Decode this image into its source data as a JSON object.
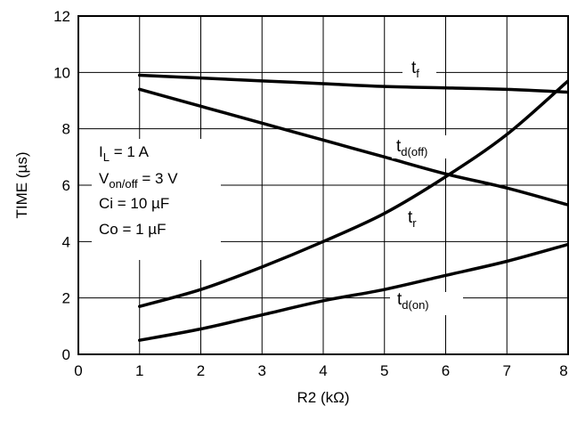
{
  "chart_data": {
    "type": "line",
    "xlabel": "R2 (kΩ)",
    "ylabel": "TIME (µs)",
    "xlim": [
      0,
      8
    ],
    "ylim": [
      0,
      12
    ],
    "xticks": [
      "0",
      "1",
      "2",
      "3",
      "4",
      "5",
      "6",
      "7",
      "8"
    ],
    "yticks": [
      "0",
      "2",
      "4",
      "6",
      "8",
      "10",
      "12"
    ],
    "grid": true,
    "series": [
      {
        "name": "tf",
        "label_main": "t",
        "label_sub": "f",
        "x": [
          1,
          2,
          3,
          4,
          5,
          6,
          7,
          8
        ],
        "y": [
          9.9,
          9.8,
          9.7,
          9.6,
          9.5,
          9.45,
          9.4,
          9.3
        ]
      },
      {
        "name": "td(off)",
        "label_main": "t",
        "label_sub": "d(off)",
        "x": [
          1,
          2,
          3,
          4,
          5,
          6,
          7,
          8
        ],
        "y": [
          9.4,
          8.8,
          8.2,
          7.6,
          7.0,
          6.4,
          5.9,
          5.3
        ]
      },
      {
        "name": "tr",
        "label_main": "t",
        "label_sub": "r",
        "x": [
          1,
          2,
          3,
          4,
          5,
          6,
          7,
          8
        ],
        "y": [
          1.7,
          2.3,
          3.1,
          4.0,
          5.0,
          6.3,
          7.8,
          9.7
        ]
      },
      {
        "name": "td(on)",
        "label_main": "t",
        "label_sub": "d(on)",
        "x": [
          1,
          2,
          3,
          4,
          5,
          6,
          7,
          8
        ],
        "y": [
          0.5,
          0.9,
          1.4,
          1.9,
          2.3,
          2.8,
          3.3,
          3.9
        ]
      }
    ],
    "conditions": [
      {
        "main": "I",
        "sub": "L",
        "rest": " = 1 A"
      },
      {
        "main": "V",
        "sub": "on/off",
        "rest": " = 3 V"
      },
      {
        "main": "Ci = 10 µF",
        "sub": "",
        "rest": ""
      },
      {
        "main": "Co = 1 µF",
        "sub": "",
        "rest": ""
      }
    ]
  }
}
